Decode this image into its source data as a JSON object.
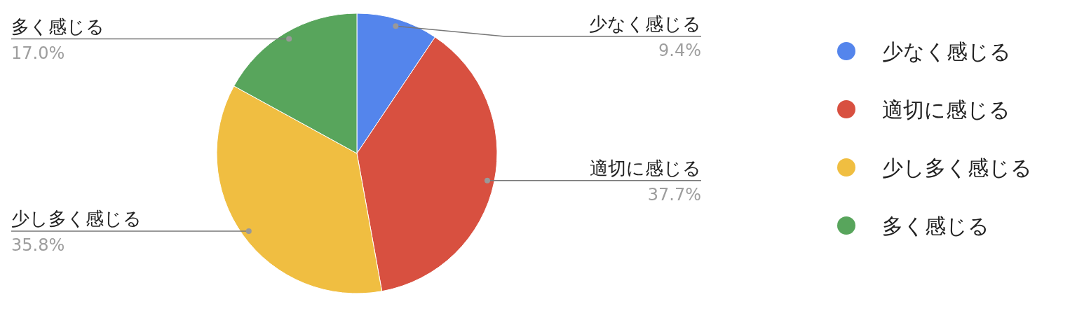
{
  "chart_data": {
    "type": "pie",
    "categories": [
      "少なく感じる",
      "適切に感じる",
      "少し多く感じる",
      "多く感じる"
    ],
    "values": [
      9.4,
      37.7,
      35.8,
      17.0
    ],
    "value_labels": [
      "9.4%",
      "37.7%",
      "35.8%",
      "17.0%"
    ],
    "colors": [
      "#5485ec",
      "#d85040",
      "#f0be41",
      "#58a55c"
    ],
    "legend": "right"
  }
}
